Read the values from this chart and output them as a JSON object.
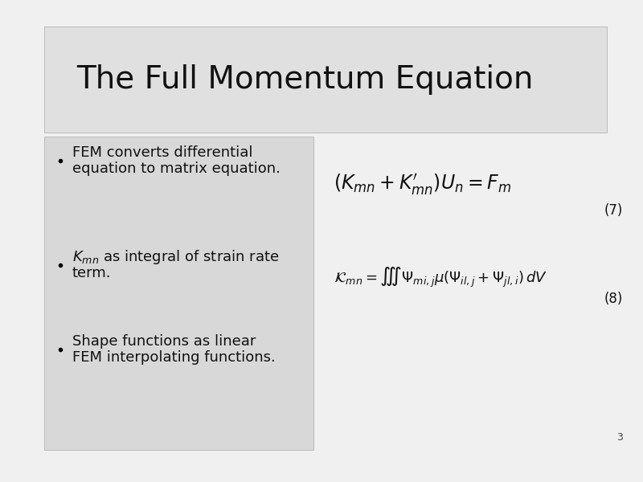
{
  "title": "The Full Momentum Equation",
  "title_bg": "#e0e0e0",
  "slide_bg": "#f0f0f0",
  "left_panel_bg": "#d8d8d8",
  "bullet1_line1": "FEM converts differential",
  "bullet1_line2": "equation to matrix equation.",
  "bullet2_line1_math": "$K_{mn}$",
  "bullet2_line1_rest": " as integral of strain rate",
  "bullet2_line2": "term.",
  "bullet3_line1": "Shape functions as linear",
  "bullet3_line2": "FEM interpolating functions.",
  "eq1": "$(K_{mn} + K^{\\prime}_{mn})U_n = F_m$",
  "eq1_label": "(7)",
  "eq2": "$\\mathcal{K}_{mn} = \\iiint \\Psi_{mi,j}\\mu(\\Psi_{il,j} + \\Psi_{jl,i})\\, dV$",
  "eq2_label": "(8)",
  "page_number": "3",
  "title_fontsize": 28,
  "bullet_fontsize": 13,
  "eq1_fontsize": 17,
  "eq2_fontsize": 13,
  "label_fontsize": 12
}
